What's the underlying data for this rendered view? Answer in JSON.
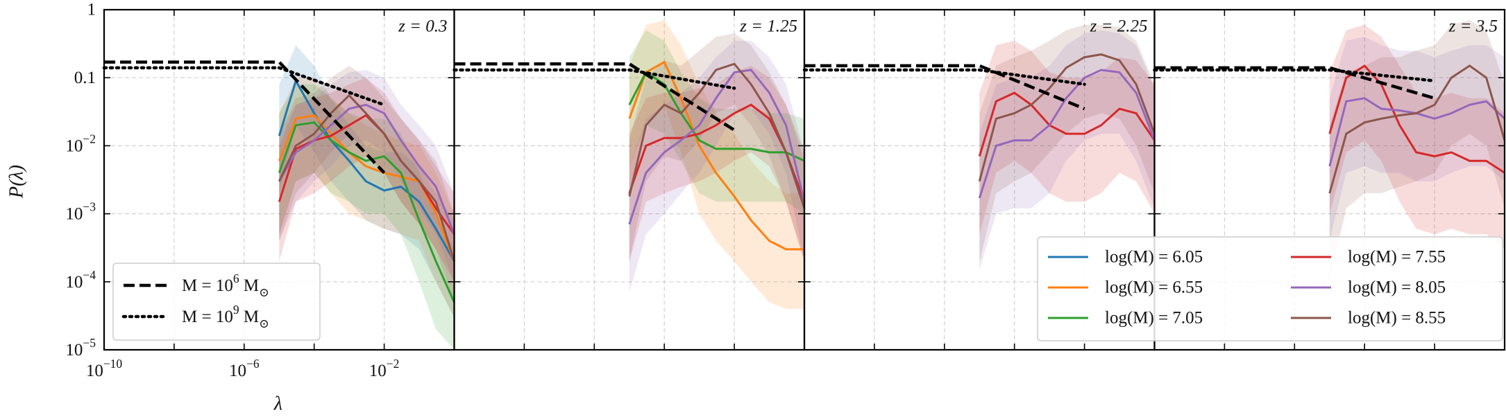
{
  "chart_data": {
    "type": "line",
    "xlabel": "λ",
    "ylabel": "P(λ)",
    "log_x": true,
    "log_y": true,
    "grid": true,
    "xlim": [
      1e-10,
      1
    ],
    "ylim": [
      1e-05,
      1
    ],
    "xticks": [
      {
        "value": 1e-10,
        "label": "10^−10"
      },
      {
        "value": 1e-06,
        "label": "10^−6"
      },
      {
        "value": 0.01,
        "label": "10^−2"
      }
    ],
    "xticks_minor": [
      1e-08,
      0.0001
    ],
    "yticks": [
      1,
      0.1,
      {
        "value": 0.01,
        "label": "10^−2"
      },
      {
        "value": 0.001,
        "label": "10^−3"
      },
      {
        "value": 0.0001,
        "label": "10^−4"
      },
      {
        "value": 1e-05,
        "label": "10^−5"
      }
    ],
    "panels": [
      {
        "title": "z = 0.3"
      },
      {
        "title": "z = 1.25"
      },
      {
        "title": "z = 2.25"
      },
      {
        "title": "z = 3.5"
      }
    ],
    "x": [
      1e-05,
      3e-05,
      0.0001,
      0.0003,
      0.001,
      0.003,
      0.01,
      0.03,
      0.1,
      0.3,
      1
    ],
    "series": [
      {
        "name": "log(M) = 6.05",
        "color": "#1f77b4",
        "values": [
          [
            0.014,
            0.09,
            0.03,
            0.012,
            0.006,
            0.003,
            0.0022,
            0.0025,
            0.0015,
            0.0006,
            0.0002
          ],
          null,
          null,
          null
        ],
        "lower": [
          [
            0.002,
            0.02,
            0.008,
            0.003,
            0.0015,
            0.0008,
            0.0006,
            0.0005,
            0.0003,
            0.0001,
            3e-05
          ],
          null,
          null,
          null
        ],
        "upper": [
          [
            0.08,
            0.3,
            0.15,
            0.05,
            0.02,
            0.01,
            0.008,
            0.008,
            0.005,
            0.002,
            0.0008
          ],
          null,
          null,
          null
        ]
      },
      {
        "name": "log(M) = 6.55",
        "color": "#ff7f0e",
        "values": [
          [
            0.006,
            0.025,
            0.028,
            0.015,
            0.008,
            0.005,
            0.004,
            0.0035,
            0.003,
            0.001,
            0.0002
          ],
          [
            0.025,
            0.12,
            0.17,
            0.05,
            0.01,
            0.004,
            0.0018,
            0.0008,
            0.0004,
            0.0003,
            0.0003
          ],
          null,
          null
        ],
        "lower": [
          [
            0.0005,
            0.003,
            0.004,
            0.002,
            0.001,
            0.0008,
            0.0006,
            0.0005,
            0.0004,
            0.0001,
            3e-05
          ],
          [
            0.002,
            0.02,
            0.04,
            0.008,
            0.001,
            0.0004,
            0.0002,
            0.0001,
            5e-05,
            4e-05,
            4e-05
          ],
          null,
          null
        ],
        "upper": [
          [
            0.03,
            0.1,
            0.1,
            0.05,
            0.03,
            0.02,
            0.015,
            0.012,
            0.01,
            0.004,
            0.001
          ],
          [
            0.15,
            0.6,
            0.7,
            0.3,
            0.08,
            0.03,
            0.015,
            0.006,
            0.003,
            0.002,
            0.002
          ],
          null,
          null
        ]
      },
      {
        "name": "log(M) = 7.05",
        "color": "#2ca02c",
        "values": [
          [
            0.004,
            0.02,
            0.022,
            0.012,
            0.008,
            0.006,
            0.007,
            0.004,
            0.0008,
            0.0002,
            5e-05
          ],
          [
            0.04,
            0.12,
            0.08,
            0.03,
            0.012,
            0.009,
            0.009,
            0.009,
            0.008,
            0.008,
            0.006
          ],
          null,
          null
        ],
        "lower": [
          [
            0.0005,
            0.003,
            0.004,
            0.002,
            0.0015,
            0.001,
            0.001,
            0.0005,
            0.0001,
            2e-05,
            1e-05
          ],
          [
            0.005,
            0.02,
            0.015,
            0.006,
            0.002,
            0.0015,
            0.0015,
            0.0015,
            0.0015,
            0.0015,
            0.001
          ],
          null,
          null
        ],
        "upper": [
          [
            0.03,
            0.08,
            0.08,
            0.05,
            0.03,
            0.025,
            0.025,
            0.015,
            0.004,
            0.001,
            0.0003
          ],
          [
            0.2,
            0.5,
            0.35,
            0.12,
            0.05,
            0.035,
            0.035,
            0.035,
            0.03,
            0.03,
            0.025
          ],
          null,
          null
        ]
      },
      {
        "name": "log(M) = 7.55",
        "color": "#d62728",
        "values": [
          [
            0.0015,
            0.009,
            0.012,
            0.014,
            0.02,
            0.028,
            0.015,
            0.006,
            0.003,
            0.0012,
            0.0005
          ],
          [
            0.002,
            0.01,
            0.013,
            0.013,
            0.015,
            0.02,
            0.03,
            0.04,
            0.025,
            0.008,
            0.0015
          ],
          [
            0.007,
            0.045,
            0.06,
            0.04,
            0.02,
            0.015,
            0.015,
            0.02,
            0.035,
            0.03,
            0.012
          ],
          [
            0.015,
            0.1,
            0.15,
            0.08,
            0.02,
            0.008,
            0.007,
            0.008,
            0.006,
            0.006,
            0.004
          ]
        ],
        "lower": [
          [
            0.0002,
            0.0015,
            0.002,
            0.003,
            0.005,
            0.007,
            0.004,
            0.0015,
            0.0007,
            0.0003,
            0.0001
          ],
          [
            0.0002,
            0.0015,
            0.002,
            0.0025,
            0.003,
            0.004,
            0.006,
            0.008,
            0.005,
            0.0015,
            0.0002
          ],
          [
            0.0005,
            0.004,
            0.006,
            0.004,
            0.002,
            0.0015,
            0.0015,
            0.002,
            0.004,
            0.003,
            0.001
          ],
          [
            0.001,
            0.008,
            0.012,
            0.006,
            0.0015,
            0.0006,
            0.0005,
            0.0006,
            0.0005,
            0.0005,
            0.0003
          ]
        ],
        "upper": [
          [
            0.01,
            0.04,
            0.05,
            0.06,
            0.08,
            0.1,
            0.06,
            0.025,
            0.012,
            0.005,
            0.002
          ],
          [
            0.015,
            0.05,
            0.06,
            0.06,
            0.07,
            0.08,
            0.12,
            0.15,
            0.1,
            0.04,
            0.008
          ],
          [
            0.06,
            0.3,
            0.35,
            0.25,
            0.12,
            0.1,
            0.1,
            0.12,
            0.2,
            0.18,
            0.08
          ],
          [
            0.12,
            0.5,
            0.6,
            0.4,
            0.15,
            0.06,
            0.05,
            0.06,
            0.05,
            0.05,
            0.03
          ]
        ]
      },
      {
        "name": "log(M) = 8.05",
        "color": "#9467bd",
        "values": [
          [
            0.003,
            0.008,
            0.012,
            0.02,
            0.035,
            0.04,
            0.03,
            0.012,
            0.005,
            0.0025,
            0.0005
          ],
          [
            0.0007,
            0.004,
            0.008,
            0.012,
            0.02,
            0.05,
            0.12,
            0.13,
            0.06,
            0.02,
            0.0015
          ],
          [
            0.0017,
            0.01,
            0.012,
            0.012,
            0.02,
            0.05,
            0.1,
            0.13,
            0.12,
            0.06,
            0.012
          ],
          [
            0.005,
            0.045,
            0.05,
            0.035,
            0.033,
            0.03,
            0.025,
            0.03,
            0.04,
            0.045,
            0.025
          ]
        ],
        "lower": [
          [
            0.0004,
            0.0015,
            0.003,
            0.005,
            0.01,
            0.012,
            0.008,
            0.003,
            0.0012,
            0.0005,
            0.0001
          ],
          [
            7e-05,
            0.0005,
            0.001,
            0.002,
            0.004,
            0.01,
            0.03,
            0.035,
            0.015,
            0.004,
            0.0002
          ],
          [
            0.00015,
            0.001,
            0.0012,
            0.0012,
            0.002,
            0.006,
            0.012,
            0.015,
            0.015,
            0.006,
            0.0012
          ],
          [
            0.0004,
            0.004,
            0.005,
            0.004,
            0.004,
            0.003,
            0.003,
            0.004,
            0.005,
            0.005,
            0.003
          ]
        ],
        "upper": [
          [
            0.015,
            0.04,
            0.05,
            0.08,
            0.12,
            0.13,
            0.1,
            0.04,
            0.02,
            0.01,
            0.002
          ],
          [
            0.005,
            0.025,
            0.04,
            0.06,
            0.1,
            0.2,
            0.35,
            0.35,
            0.2,
            0.08,
            0.008
          ],
          [
            0.015,
            0.08,
            0.1,
            0.1,
            0.15,
            0.3,
            0.45,
            0.5,
            0.45,
            0.3,
            0.07
          ],
          [
            0.05,
            0.35,
            0.4,
            0.3,
            0.25,
            0.25,
            0.2,
            0.25,
            0.3,
            0.3,
            0.2
          ]
        ]
      },
      {
        "name": "log(M) = 8.55",
        "color": "#8c564b",
        "values": [
          [
            0.003,
            0.01,
            0.015,
            0.03,
            0.055,
            0.03,
            0.015,
            0.006,
            0.003,
            0.0015,
            0.0002
          ],
          [
            0.0018,
            0.02,
            0.04,
            0.03,
            0.06,
            0.13,
            0.16,
            0.08,
            0.03,
            0.008,
            0.0012
          ],
          [
            0.003,
            0.025,
            0.03,
            0.04,
            0.07,
            0.14,
            0.2,
            0.22,
            0.18,
            0.08,
            0.015
          ],
          [
            0.002,
            0.015,
            0.022,
            0.025,
            0.028,
            0.03,
            0.04,
            0.1,
            0.15,
            0.1,
            0.012
          ]
        ],
        "lower": [
          [
            0.0004,
            0.002,
            0.004,
            0.008,
            0.015,
            0.008,
            0.004,
            0.0015,
            0.0007,
            0.0003,
            5e-05
          ],
          [
            0.0002,
            0.003,
            0.007,
            0.006,
            0.012,
            0.03,
            0.04,
            0.02,
            0.007,
            0.0015,
            0.0002
          ],
          [
            0.0002,
            0.002,
            0.003,
            0.004,
            0.008,
            0.015,
            0.025,
            0.03,
            0.025,
            0.01,
            0.002
          ],
          [
            0.0001,
            0.0012,
            0.002,
            0.002,
            0.0025,
            0.003,
            0.004,
            0.01,
            0.015,
            0.01,
            0.0012
          ]
        ],
        "upper": [
          [
            0.015,
            0.05,
            0.06,
            0.1,
            0.15,
            0.1,
            0.05,
            0.025,
            0.012,
            0.006,
            0.001
          ],
          [
            0.012,
            0.1,
            0.18,
            0.15,
            0.25,
            0.4,
            0.45,
            0.3,
            0.12,
            0.04,
            0.006
          ],
          [
            0.03,
            0.15,
            0.2,
            0.25,
            0.35,
            0.5,
            0.6,
            0.6,
            0.55,
            0.35,
            0.08
          ],
          [
            0.02,
            0.12,
            0.15,
            0.2,
            0.2,
            0.25,
            0.3,
            0.6,
            0.7,
            0.5,
            0.08
          ]
        ]
      }
    ],
    "reference_lines": [
      {
        "name": "M = 10^6 M_⊙",
        "style": "dashed",
        "color": "#000000",
        "x": [
          1e-10,
          1e-05,
          0.01
        ],
        "values": [
          [
            0.17,
            0.17,
            0.004
          ],
          [
            0.16,
            0.16,
            0.017
          ],
          [
            0.15,
            0.15,
            0.035
          ],
          [
            0.14,
            0.14,
            0.05
          ]
        ]
      },
      {
        "name": "M = 10^9 M_⊙",
        "style": "dotted",
        "color": "#000000",
        "x": [
          1e-10,
          1e-05,
          0.01
        ],
        "values": [
          [
            0.14,
            0.14,
            0.04
          ],
          [
            0.13,
            0.13,
            0.07
          ],
          [
            0.13,
            0.13,
            0.08
          ],
          [
            0.13,
            0.13,
            0.09
          ]
        ]
      }
    ]
  }
}
